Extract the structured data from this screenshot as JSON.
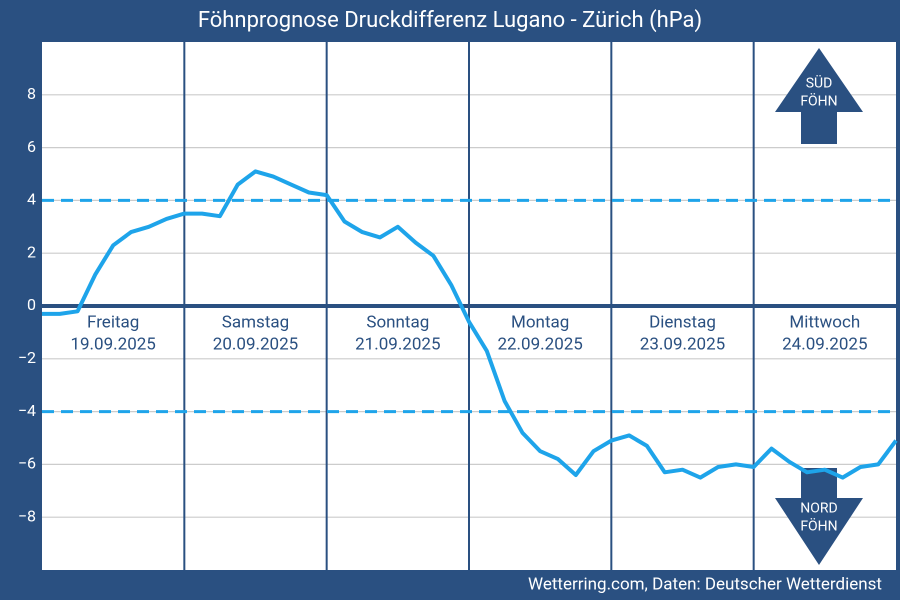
{
  "chart_data": {
    "type": "line",
    "title": "Föhnprognose Druckdifferenz Lugano - Zürich (hPa)",
    "footer": "Wetterring.com, Daten: Deutscher Wetterdienst",
    "days": [
      {
        "name": "Freitag",
        "date": "19.09.2025"
      },
      {
        "name": "Samstag",
        "date": "20.09.2025"
      },
      {
        "name": "Sonntag",
        "date": "21.09.2025"
      },
      {
        "name": "Montag",
        "date": "22.09.2025"
      },
      {
        "name": "Dienstag",
        "date": "23.09.2025"
      },
      {
        "name": "Mittwoch",
        "date": "24.09.2025"
      }
    ],
    "series": [
      {
        "color": "#1ea4ea",
        "values": [
          -0.3,
          -0.3,
          -0.2,
          1.2,
          2.3,
          2.8,
          3.0,
          3.3,
          3.5,
          3.5,
          3.4,
          4.6,
          5.1,
          4.9,
          4.6,
          4.3,
          4.2,
          3.2,
          2.8,
          2.6,
          3.0,
          2.4,
          1.9,
          0.8,
          -0.6,
          -1.7,
          -3.6,
          -4.8,
          -5.5,
          -5.8,
          -6.4,
          -5.5,
          -5.1,
          -4.9,
          -5.3,
          -6.3,
          -6.2,
          -6.5,
          -6.1,
          -6.0,
          -6.1,
          -5.4,
          -5.9,
          -6.3,
          -6.2,
          -6.5,
          -6.1,
          -6.0,
          -5.1
        ]
      }
    ],
    "thresholds": [
      4,
      -4
    ],
    "ylim": [
      -10,
      10
    ],
    "yticks": [
      {
        "value": -8,
        "label": "−8"
      },
      {
        "value": -6,
        "label": "−6"
      },
      {
        "value": -4,
        "label": "−4"
      },
      {
        "value": -2,
        "label": "−2"
      },
      0,
      2,
      4,
      6,
      8
    ],
    "grid": true,
    "arrows": {
      "up": [
        "SÜD",
        "FÖHN"
      ],
      "down": [
        "NORD",
        "FÖHN"
      ]
    }
  }
}
